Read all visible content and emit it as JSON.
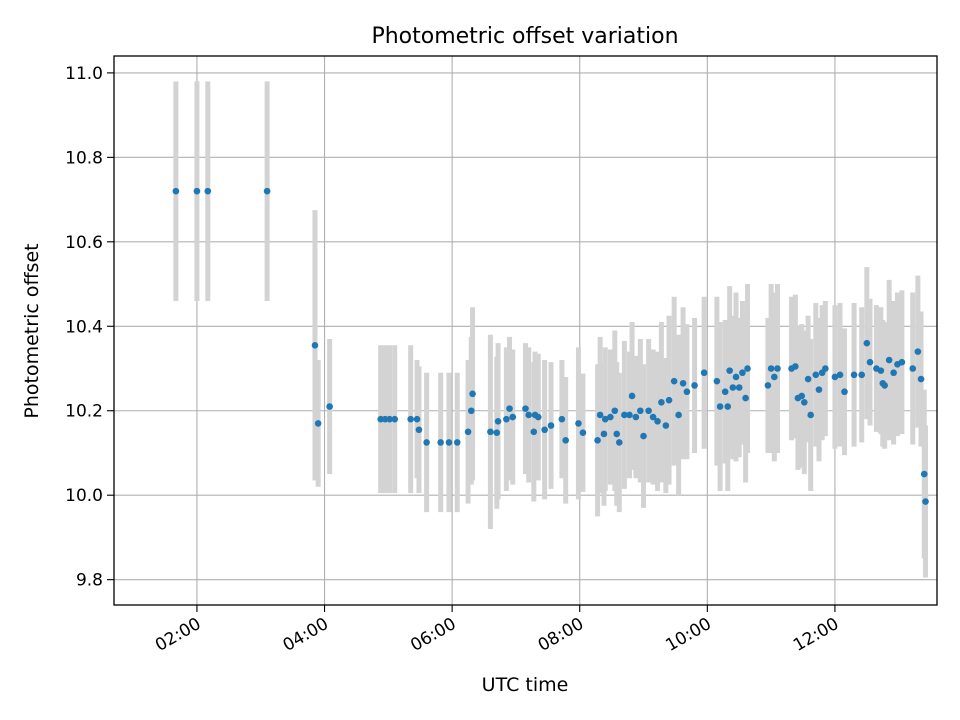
{
  "chart_data": {
    "type": "scatter",
    "title": "Photometric offset variation",
    "xlabel": "UTC time",
    "ylabel": "Photometric offset",
    "xlim_hours": [
      0.7,
      13.6
    ],
    "ylim": [
      9.74,
      11.04
    ],
    "grid": true,
    "x_ticks": [
      {
        "h": 2,
        "label": "02:00"
      },
      {
        "h": 4,
        "label": "04:00"
      },
      {
        "h": 6,
        "label": "06:00"
      },
      {
        "h": 8,
        "label": "08:00"
      },
      {
        "h": 10,
        "label": "10:00"
      },
      {
        "h": 12,
        "label": "12:00"
      }
    ],
    "y_ticks": [
      {
        "v": 9.8,
        "label": "9.8"
      },
      {
        "v": 10.0,
        "label": "10.0"
      },
      {
        "v": 10.2,
        "label": "10.2"
      },
      {
        "v": 10.4,
        "label": "10.4"
      },
      {
        "v": 10.6,
        "label": "10.6"
      },
      {
        "v": 10.8,
        "label": "10.8"
      },
      {
        "v": 11.0,
        "label": "11.0"
      }
    ],
    "marker_color": "#1f77b4",
    "errorbar_color": "#d3d3d3",
    "points": [
      [
        1.67,
        10.72,
        0.26
      ],
      [
        2.0,
        10.72,
        0.26
      ],
      [
        2.17,
        10.72,
        0.26
      ],
      [
        3.1,
        10.72,
        0.26
      ],
      [
        3.85,
        10.355,
        0.32
      ],
      [
        3.9,
        10.17,
        0.15
      ],
      [
        4.08,
        10.21,
        0.16
      ],
      [
        4.88,
        10.18,
        0.175
      ],
      [
        4.95,
        10.18,
        0.175
      ],
      [
        5.02,
        10.18,
        0.175
      ],
      [
        5.1,
        10.18,
        0.175
      ],
      [
        5.35,
        10.18,
        0.175
      ],
      [
        5.45,
        10.18,
        0.14
      ],
      [
        5.48,
        10.155,
        0.15
      ],
      [
        5.6,
        10.125,
        0.165
      ],
      [
        5.82,
        10.125,
        0.165
      ],
      [
        5.95,
        10.125,
        0.165
      ],
      [
        6.08,
        10.125,
        0.165
      ],
      [
        6.25,
        10.15,
        0.17
      ],
      [
        6.3,
        10.2,
        0.175
      ],
      [
        6.32,
        10.24,
        0.205
      ],
      [
        6.6,
        10.15,
        0.23
      ],
      [
        6.7,
        10.148,
        0.18
      ],
      [
        6.72,
        10.175,
        0.185
      ],
      [
        6.85,
        10.18,
        0.17
      ],
      [
        6.9,
        10.205,
        0.17
      ],
      [
        6.95,
        10.185,
        0.16
      ],
      [
        7.15,
        10.205,
        0.155
      ],
      [
        7.2,
        10.19,
        0.16
      ],
      [
        7.28,
        10.15,
        0.165
      ],
      [
        7.3,
        10.19,
        0.15
      ],
      [
        7.35,
        10.185,
        0.15
      ],
      [
        7.45,
        10.155,
        0.165
      ],
      [
        7.55,
        10.165,
        0.15
      ],
      [
        7.72,
        10.18,
        0.14
      ],
      [
        7.78,
        10.13,
        0.15
      ],
      [
        7.98,
        10.17,
        0.18
      ],
      [
        8.05,
        10.148,
        0.14
      ],
      [
        8.28,
        10.13,
        0.18
      ],
      [
        8.32,
        10.19,
        0.185
      ],
      [
        8.38,
        10.145,
        0.17
      ],
      [
        8.4,
        10.18,
        0.17
      ],
      [
        8.48,
        10.185,
        0.16
      ],
      [
        8.55,
        10.2,
        0.19
      ],
      [
        8.58,
        10.145,
        0.17
      ],
      [
        8.62,
        10.125,
        0.165
      ],
      [
        8.7,
        10.19,
        0.175
      ],
      [
        8.78,
        10.19,
        0.15
      ],
      [
        8.82,
        10.235,
        0.175
      ],
      [
        8.88,
        10.185,
        0.145
      ],
      [
        8.95,
        10.2,
        0.17
      ],
      [
        9.0,
        10.14,
        0.17
      ],
      [
        9.08,
        10.2,
        0.17
      ],
      [
        9.15,
        10.185,
        0.16
      ],
      [
        9.22,
        10.175,
        0.165
      ],
      [
        9.28,
        10.22,
        0.19
      ],
      [
        9.35,
        10.165,
        0.16
      ],
      [
        9.4,
        10.225,
        0.2
      ],
      [
        9.48,
        10.27,
        0.2
      ],
      [
        9.55,
        10.19,
        0.19
      ],
      [
        9.62,
        10.265,
        0.18
      ],
      [
        9.68,
        10.245,
        0.16
      ],
      [
        9.8,
        10.26,
        0.16
      ],
      [
        9.95,
        10.29,
        0.18
      ],
      [
        10.15,
        10.27,
        0.2
      ],
      [
        10.2,
        10.21,
        0.2
      ],
      [
        10.28,
        10.245,
        0.17
      ],
      [
        10.32,
        10.21,
        0.2
      ],
      [
        10.35,
        10.295,
        0.2
      ],
      [
        10.4,
        10.255,
        0.17
      ],
      [
        10.45,
        10.28,
        0.2
      ],
      [
        10.5,
        10.255,
        0.165
      ],
      [
        10.55,
        10.29,
        0.17
      ],
      [
        10.6,
        10.23,
        0.2
      ],
      [
        10.63,
        10.3,
        0.2
      ],
      [
        10.95,
        10.26,
        0.16
      ],
      [
        11.0,
        10.3,
        0.2
      ],
      [
        11.05,
        10.28,
        0.2
      ],
      [
        11.1,
        10.3,
        0.2
      ],
      [
        11.32,
        10.3,
        0.17
      ],
      [
        11.38,
        10.305,
        0.17
      ],
      [
        11.42,
        10.23,
        0.17
      ],
      [
        11.48,
        10.235,
        0.17
      ],
      [
        11.52,
        10.22,
        0.17
      ],
      [
        11.58,
        10.275,
        0.15
      ],
      [
        11.62,
        10.19,
        0.18
      ],
      [
        11.7,
        10.285,
        0.17
      ],
      [
        11.75,
        10.25,
        0.17
      ],
      [
        11.8,
        10.29,
        0.16
      ],
      [
        11.85,
        10.3,
        0.16
      ],
      [
        12.0,
        10.28,
        0.17
      ],
      [
        12.08,
        10.285,
        0.17
      ],
      [
        12.15,
        10.245,
        0.15
      ],
      [
        12.3,
        10.285,
        0.17
      ],
      [
        12.42,
        10.285,
        0.16
      ],
      [
        12.5,
        10.36,
        0.18
      ],
      [
        12.55,
        10.315,
        0.15
      ],
      [
        12.65,
        10.3,
        0.15
      ],
      [
        12.72,
        10.295,
        0.15
      ],
      [
        12.75,
        10.265,
        0.15
      ],
      [
        12.78,
        10.26,
        0.15
      ],
      [
        12.85,
        10.32,
        0.19
      ],
      [
        12.92,
        10.29,
        0.17
      ],
      [
        12.98,
        10.31,
        0.17
      ],
      [
        13.05,
        10.315,
        0.17
      ],
      [
        13.22,
        10.3,
        0.18
      ],
      [
        13.3,
        10.34,
        0.18
      ],
      [
        13.35,
        10.275,
        0.16
      ],
      [
        13.4,
        10.05,
        0.2
      ],
      [
        13.42,
        9.985,
        0.18
      ]
    ]
  }
}
